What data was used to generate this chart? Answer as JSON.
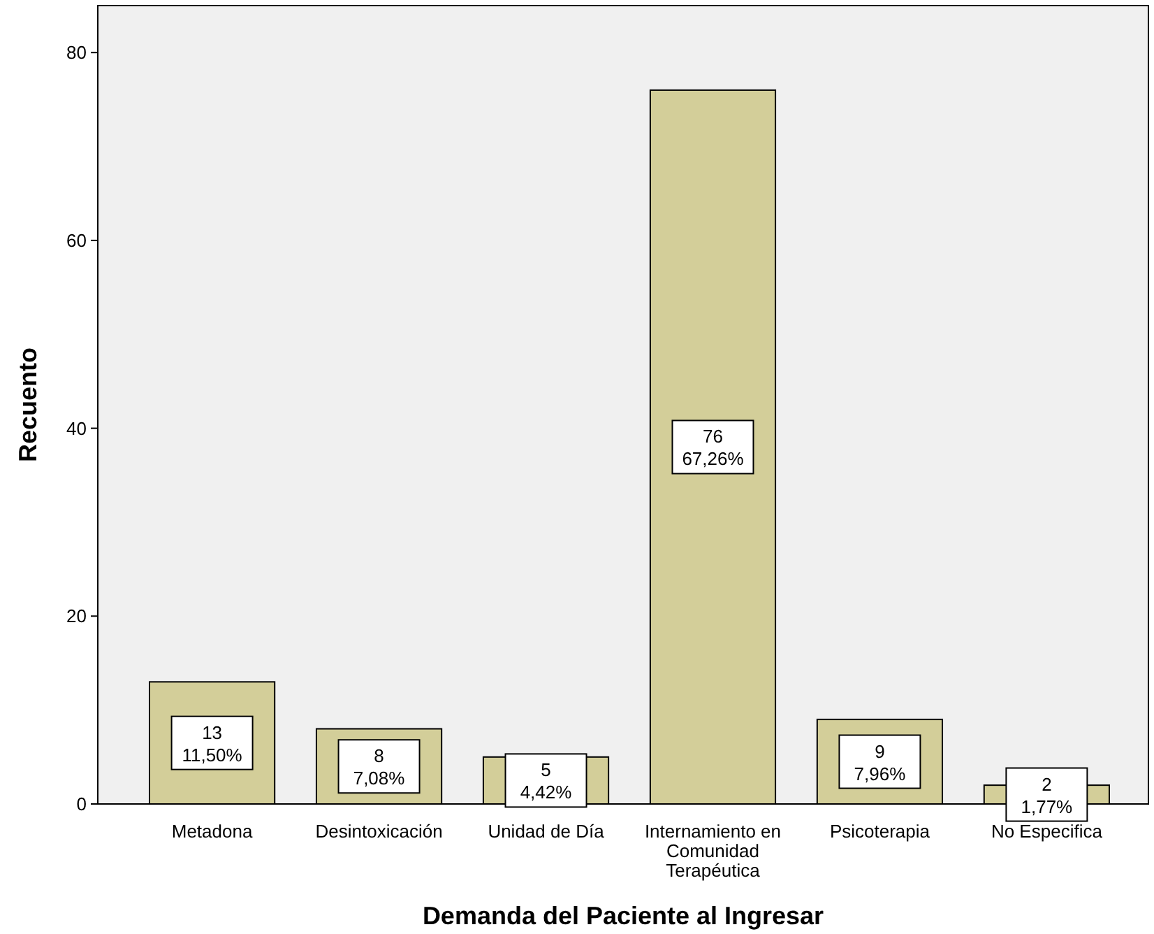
{
  "chart_data": {
    "type": "bar",
    "xlabel": "Demanda del Paciente al Ingresar",
    "ylabel": "Recuento",
    "categories": [
      "Metadona",
      "Desintoxicación",
      "Unidad de Día",
      "Internamiento en Comunidad Terapéutica",
      "Psicoterapia",
      "No Especifica"
    ],
    "values": [
      13,
      8,
      5,
      76,
      9,
      2
    ],
    "value_labels": [
      "13\n11,50%",
      "8\n7,08%",
      "5\n4,42%",
      "76\n67,26%",
      "9\n7,96%",
      "2\n1,77%"
    ],
    "color": "#d3ce99",
    "ylim": [
      0,
      85
    ],
    "yticks": [
      0,
      20,
      40,
      60,
      80
    ],
    "grid": false
  }
}
